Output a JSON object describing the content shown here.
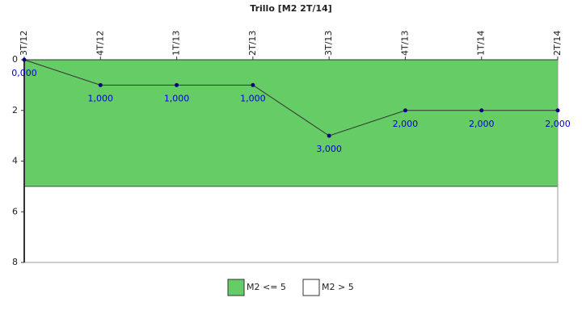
{
  "chart_data": {
    "type": "line",
    "title": "Trillo [M2 2T/14]",
    "categories": [
      "3T/12",
      "4T/12",
      "1T/13",
      "2T/13",
      "3T/13",
      "4T/13",
      "1T/14",
      "2T/14"
    ],
    "series": [
      {
        "name": "M2",
        "color": "#333333",
        "marker_color": "#000080",
        "values": [
          0,
          1,
          1,
          1,
          3,
          2,
          2,
          2
        ],
        "value_labels": [
          "0,000",
          "1,000",
          "1,000",
          "1,000",
          "3,000",
          "2,000",
          "2,000",
          "2,000"
        ]
      }
    ],
    "bands": [
      {
        "name": "M2 <= 5",
        "color": "#66cc66",
        "from": 0,
        "to": 5
      },
      {
        "name": "M2 > 5",
        "color": "#ffffff",
        "from": 5,
        "to": 8
      }
    ],
    "ylim": [
      0,
      8
    ],
    "yticks": [
      0,
      2,
      4,
      6,
      8
    ],
    "y_inverted": true
  }
}
